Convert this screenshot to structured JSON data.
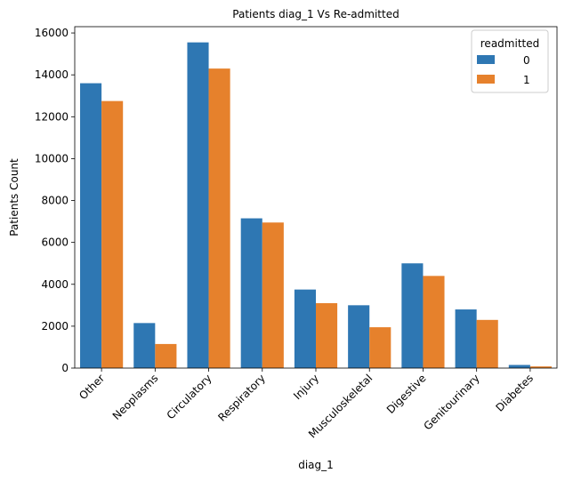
{
  "chart_data": {
    "type": "bar",
    "title": "Patients diag_1 Vs Re-admitted",
    "xlabel": "diag_1",
    "ylabel": "Patients Count",
    "categories": [
      "Other",
      "Neoplasms",
      "Circulatory",
      "Respiratory",
      "Injury",
      "Musculoskeletal",
      "Digestive",
      "Genitourinary",
      "Diabetes"
    ],
    "series": [
      {
        "name": "0",
        "color": "#2e77b3",
        "values": [
          13600,
          2150,
          15550,
          7150,
          3750,
          3000,
          5000,
          2800,
          150
        ]
      },
      {
        "name": "1",
        "color": "#e6812c",
        "values": [
          12750,
          1150,
          14300,
          6950,
          3100,
          1950,
          4400,
          2300,
          80
        ]
      }
    ],
    "ylim": [
      0,
      16300
    ],
    "yticks": [
      0,
      2000,
      4000,
      6000,
      8000,
      10000,
      12000,
      14000,
      16000
    ],
    "legend": {
      "title": "readmitted",
      "placement": "top-right"
    },
    "grid": false
  }
}
